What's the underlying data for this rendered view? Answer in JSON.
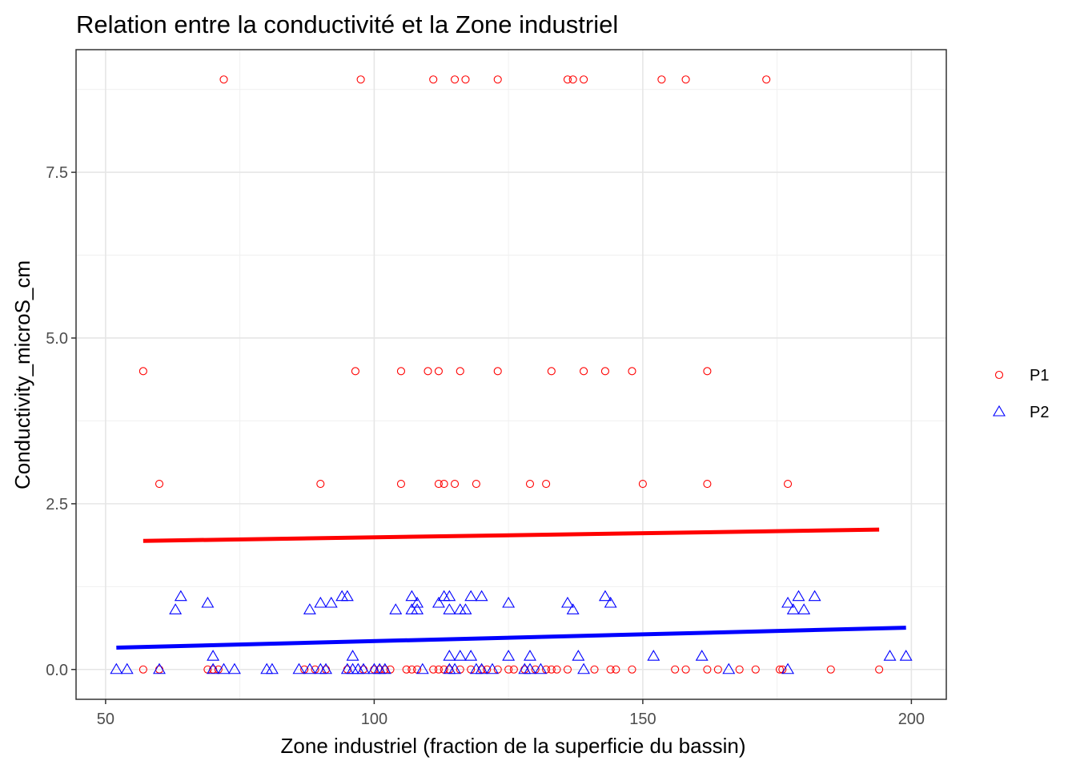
{
  "chart_data": {
    "type": "scatter",
    "title": "Relation entre la conductivité et la Zone industriel",
    "xlabel": "Zone industriel (fraction de la superficie du bassin)",
    "ylabel": "Conductivity_microS_cm",
    "xlim": [
      44.5,
      206.5
    ],
    "ylim": [
      -0.45,
      9.35
    ],
    "x_ticks": [
      50,
      100,
      150,
      200
    ],
    "x_tick_labels": [
      "50",
      "100",
      "150",
      "200"
    ],
    "y_ticks": [
      0,
      2.5,
      5,
      7.5
    ],
    "y_tick_labels": [
      "0.0",
      "2.5",
      "5.0",
      "7.5"
    ],
    "grid": true,
    "legend_position": "right",
    "series": [
      {
        "name": "P1",
        "color": "#ff0000",
        "marker": "circle",
        "points": [
          [
            72,
            8.9
          ],
          [
            97.5,
            8.9
          ],
          [
            111,
            8.9
          ],
          [
            115,
            8.9
          ],
          [
            117,
            8.9
          ],
          [
            123,
            8.9
          ],
          [
            136,
            8.9
          ],
          [
            137,
            8.9
          ],
          [
            139,
            8.9
          ],
          [
            153.5,
            8.9
          ],
          [
            158,
            8.9
          ],
          [
            173,
            8.9
          ],
          [
            57,
            4.5
          ],
          [
            96.5,
            4.5
          ],
          [
            105,
            4.5
          ],
          [
            110,
            4.5
          ],
          [
            112,
            4.5
          ],
          [
            116,
            4.5
          ],
          [
            123,
            4.5
          ],
          [
            133,
            4.5
          ],
          [
            139,
            4.5
          ],
          [
            143,
            4.5
          ],
          [
            148,
            4.5
          ],
          [
            162,
            4.5
          ],
          [
            60,
            2.8
          ],
          [
            90,
            2.8
          ],
          [
            105,
            2.8
          ],
          [
            112,
            2.8
          ],
          [
            113,
            2.8
          ],
          [
            115,
            2.8
          ],
          [
            119,
            2.8
          ],
          [
            129,
            2.8
          ],
          [
            132,
            2.8
          ],
          [
            150,
            2.8
          ],
          [
            162,
            2.8
          ],
          [
            177,
            2.8
          ],
          [
            57,
            0
          ],
          [
            60,
            0
          ],
          [
            69,
            0
          ],
          [
            70,
            0
          ],
          [
            71,
            0
          ],
          [
            87,
            0
          ],
          [
            89,
            0
          ],
          [
            91,
            0
          ],
          [
            95,
            0
          ],
          [
            98,
            0
          ],
          [
            100,
            0
          ],
          [
            101,
            0
          ],
          [
            102,
            0
          ],
          [
            103,
            0
          ],
          [
            106,
            0
          ],
          [
            107,
            0
          ],
          [
            108,
            0
          ],
          [
            111,
            0
          ],
          [
            112,
            0
          ],
          [
            113,
            0
          ],
          [
            114,
            0
          ],
          [
            116,
            0
          ],
          [
            118,
            0
          ],
          [
            120,
            0
          ],
          [
            121,
            0
          ],
          [
            123,
            0
          ],
          [
            125,
            0
          ],
          [
            126,
            0
          ],
          [
            128,
            0
          ],
          [
            130,
            0
          ],
          [
            132,
            0
          ],
          [
            133,
            0
          ],
          [
            134,
            0
          ],
          [
            136,
            0
          ],
          [
            141,
            0
          ],
          [
            144,
            0
          ],
          [
            145,
            0
          ],
          [
            148,
            0
          ],
          [
            156,
            0
          ],
          [
            158,
            0
          ],
          [
            162,
            0
          ],
          [
            164,
            0
          ],
          [
            168,
            0
          ],
          [
            171,
            0
          ],
          [
            175.5,
            0
          ],
          [
            176,
            0
          ],
          [
            185,
            0
          ],
          [
            194,
            0
          ]
        ],
        "fit": {
          "x": [
            57,
            194
          ],
          "y": [
            1.94,
            2.11
          ]
        }
      },
      {
        "name": "P2",
        "color": "#0000ff",
        "marker": "triangle",
        "points": [
          [
            64,
            1.1
          ],
          [
            63,
            0.9
          ],
          [
            69,
            1.0
          ],
          [
            88,
            0.9
          ],
          [
            90,
            1.0
          ],
          [
            92,
            1.0
          ],
          [
            94,
            1.1
          ],
          [
            95,
            1.1
          ],
          [
            104,
            0.9
          ],
          [
            107,
            1.1
          ],
          [
            107,
            0.9
          ],
          [
            108,
            1.0
          ],
          [
            108,
            0.9
          ],
          [
            112,
            1.0
          ],
          [
            113,
            1.1
          ],
          [
            114,
            1.1
          ],
          [
            114,
            0.9
          ],
          [
            116,
            0.9
          ],
          [
            117,
            0.9
          ],
          [
            118,
            1.1
          ],
          [
            120,
            1.1
          ],
          [
            125,
            1.0
          ],
          [
            136,
            1.0
          ],
          [
            137,
            0.9
          ],
          [
            143,
            1.1
          ],
          [
            144,
            1.0
          ],
          [
            177,
            1.0
          ],
          [
            178,
            0.9
          ],
          [
            179,
            1.1
          ],
          [
            180,
            0.9
          ],
          [
            182,
            1.1
          ],
          [
            70,
            0.2
          ],
          [
            96,
            0.2
          ],
          [
            114,
            0.2
          ],
          [
            116,
            0.2
          ],
          [
            118,
            0.2
          ],
          [
            125,
            0.2
          ],
          [
            129,
            0.2
          ],
          [
            138,
            0.2
          ],
          [
            152,
            0.2
          ],
          [
            161,
            0.2
          ],
          [
            196,
            0.2
          ],
          [
            199,
            0.2
          ],
          [
            52,
            0
          ],
          [
            54,
            0
          ],
          [
            60,
            0
          ],
          [
            70,
            0
          ],
          [
            72,
            0
          ],
          [
            74,
            0
          ],
          [
            80,
            0
          ],
          [
            81,
            0
          ],
          [
            86,
            0
          ],
          [
            88,
            0
          ],
          [
            90,
            0
          ],
          [
            91,
            0
          ],
          [
            95,
            0
          ],
          [
            96,
            0
          ],
          [
            97,
            0
          ],
          [
            98,
            0
          ],
          [
            100,
            0
          ],
          [
            101,
            0
          ],
          [
            102,
            0
          ],
          [
            109,
            0
          ],
          [
            114,
            0
          ],
          [
            115,
            0
          ],
          [
            119,
            0
          ],
          [
            120,
            0
          ],
          [
            122,
            0
          ],
          [
            128,
            0
          ],
          [
            129,
            0
          ],
          [
            131,
            0
          ],
          [
            139,
            0
          ],
          [
            166,
            0
          ],
          [
            177,
            0
          ]
        ],
        "fit": {
          "x": [
            52,
            199
          ],
          "y": [
            0.33,
            0.63
          ]
        }
      }
    ]
  }
}
